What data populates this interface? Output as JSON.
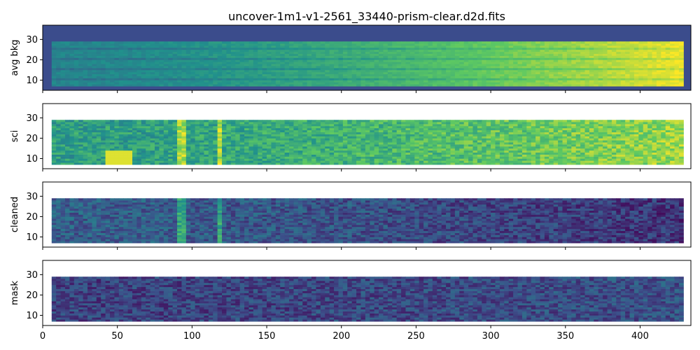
{
  "chart_data": {
    "type": "heatmap",
    "title": "uncover-1m1-v1-2561_33440-prism-clear.d2d.fits",
    "xlim": [
      0,
      434
    ],
    "ylim": [
      5,
      37
    ],
    "x_ticks": [
      0,
      50,
      100,
      150,
      200,
      250,
      300,
      350,
      400
    ],
    "y_ticks": [
      10,
      20,
      30
    ],
    "colormap": [
      "#440154",
      "#3b528b",
      "#21918c",
      "#5ec962",
      "#fde725"
    ],
    "background_color": "#3b4c8c",
    "x_extent": [
      6,
      427
    ],
    "y_extent": [
      7,
      29
    ],
    "panels": [
      {
        "label": "avg bkg",
        "description_values": {
          "left_level": 0.45,
          "right_level": 0.98
        }
      },
      {
        "label": "sci",
        "description_values": {
          "left_level": 0.55,
          "right_level": 0.85
        }
      },
      {
        "label": "cleaned",
        "description_values": {
          "left_level": 0.3,
          "right_level": 0.15
        }
      },
      {
        "label": "mask",
        "description_values": {
          "left_level": 0.2,
          "right_level": 0.25
        }
      }
    ]
  }
}
